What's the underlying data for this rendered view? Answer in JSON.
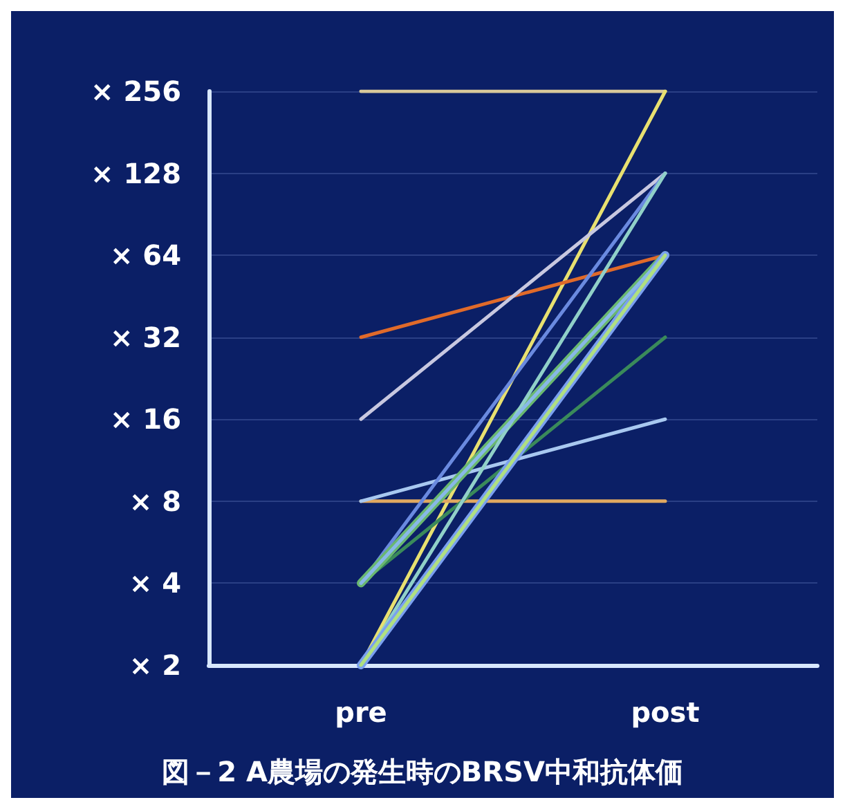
{
  "chart_data": {
    "type": "line",
    "title": "図－2 A農場の発生時のBRSV中和抗体価",
    "categories": [
      "pre",
      "post"
    ],
    "series": [
      {
        "color": "#d8c89a",
        "values": [
          256,
          256
        ]
      },
      {
        "color": "#e8e070",
        "values": [
          2,
          256
        ]
      },
      {
        "color": "#e06a2a",
        "values": [
          32,
          64
        ]
      },
      {
        "color": "#c8c8e0",
        "values": [
          16,
          128
        ]
      },
      {
        "color": "#e0a860",
        "values": [
          8,
          8
        ]
      },
      {
        "color": "#a8c8f0",
        "values": [
          8,
          16
        ]
      },
      {
        "color": "#3a8a5a",
        "values": [
          4,
          32
        ]
      },
      {
        "color": "#6a8ae0",
        "values": [
          4,
          128
        ]
      },
      {
        "color": "#6ab870",
        "values": [
          4,
          64
        ]
      },
      {
        "color": "#90d0c8",
        "values": [
          2,
          128
        ]
      },
      {
        "color": "#7aa0f0",
        "values": [
          2,
          64
        ]
      },
      {
        "color": "#88b8e8",
        "values": [
          4,
          64
        ]
      },
      {
        "color": "#b0e080",
        "values": [
          2,
          64
        ]
      }
    ],
    "log": "y",
    "ylim": [
      2,
      256
    ],
    "yticks": [
      {
        "value": 2,
        "label": "× 2"
      },
      {
        "value": 4,
        "label": "× 4"
      },
      {
        "value": 8,
        "label": "× 8"
      },
      {
        "value": 16,
        "label": "× 16"
      },
      {
        "value": 32,
        "label": "× 32"
      },
      {
        "value": 64,
        "label": "× 64"
      },
      {
        "value": 128,
        "label": "× 128"
      },
      {
        "value": 256,
        "label": "× 256"
      }
    ],
    "grid": "y",
    "marker": "none",
    "line_style": "solid"
  }
}
